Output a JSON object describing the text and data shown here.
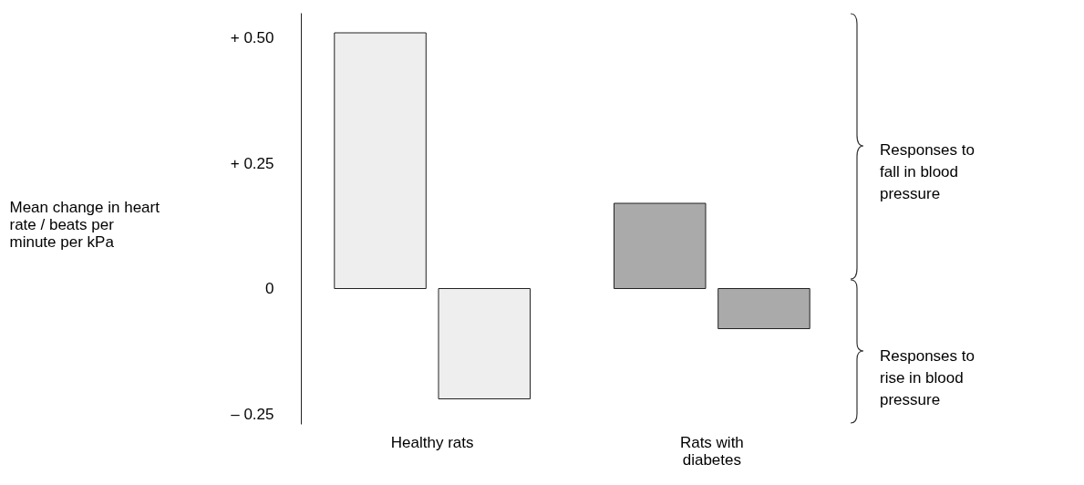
{
  "chart_data": {
    "type": "bar",
    "ylabel": "Mean change in heart rate / beats per minute per kPa",
    "categories": [
      "Healthy rats",
      "Rats with diabetes"
    ],
    "series": [
      {
        "colors": [
          "#eeeeee",
          "#aaaaaa"
        ],
        "values": [
          0.51,
          0.17
        ]
      },
      {
        "colors": [
          "#eeeeee",
          "#aaaaaa"
        ],
        "values": [
          -0.22,
          -0.08
        ]
      }
    ],
    "ylim": [
      -0.27,
      0.55
    ],
    "yticks": [
      {
        "value": 0.5,
        "label": "+ 0.50"
      },
      {
        "value": 0.25,
        "label": "+ 0.25"
      },
      0,
      {
        "value": -0.25,
        "label": "– 0.25"
      }
    ],
    "annotations": [
      "Responses to fall in blood pressure",
      "Responses to rise in blood pressure"
    ]
  }
}
